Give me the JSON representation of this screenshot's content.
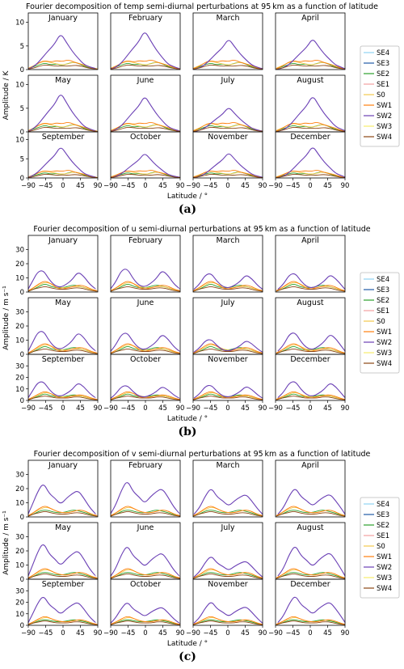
{
  "legend_labels": [
    "SE4",
    "SE3",
    "SE2",
    "SE1",
    "S0",
    "SW1",
    "SW2",
    "SW3",
    "SW4"
  ],
  "colors": {
    "SE4": "#8fd3f2",
    "SE3": "#1f5aa6",
    "SE2": "#2ca02c",
    "SE1": "#f4a0a0",
    "S0": "#f2c94c",
    "SW1": "#ff7f0e",
    "SW2": "#6a3fb5",
    "SW3": "#f7ec6a",
    "SW4": "#8b4513"
  },
  "months": [
    "January",
    "February",
    "March",
    "April",
    "May",
    "June",
    "July",
    "August",
    "September",
    "October",
    "November",
    "December"
  ],
  "x_tick_labels": [
    "−90",
    "−45",
    "0",
    "45",
    "90"
  ],
  "x_label": "Latitude / °",
  "chart_data": [
    {
      "type": "line",
      "title": "Fourier decomposition of temp semi-diurnal perturbations at 95 km as a function of latitude",
      "caption": "(a)",
      "ylabel": "Amplitude / K",
      "ylim": [
        0,
        12
      ],
      "y_ticks": [
        0,
        5,
        10
      ],
      "x": [
        -90,
        -75,
        -60,
        -45,
        -30,
        -15,
        0,
        15,
        30,
        45,
        60,
        75,
        90
      ],
      "xlim": [
        -90,
        90
      ],
      "series": [
        {
          "name": "SE2",
          "values": [
            0.2,
            0.6,
            1.0,
            1.4,
            1.0,
            1.2,
            0.9,
            1.3,
            1.6,
            1.2,
            0.6,
            0.3,
            0.1
          ]
        },
        {
          "name": "S0",
          "values": [
            0.3,
            0.8,
            1.4,
            1.8,
            1.5,
            1.2,
            1.0,
            1.2,
            1.6,
            1.3,
            0.8,
            0.4,
            0.2
          ]
        },
        {
          "name": "SW1",
          "values": [
            0.2,
            0.7,
            1.5,
            1.9,
            1.6,
            1.9,
            1.7,
            2.1,
            1.6,
            1.2,
            0.9,
            0.4,
            0.1
          ]
        },
        {
          "name": "SW2",
          "values": [
            0.1,
            0.4,
            1.2,
            2.5,
            3.8,
            5.0,
            7.0,
            5.2,
            3.5,
            2.2,
            1.0,
            0.5,
            0.2
          ]
        },
        {
          "name": "SW4",
          "values": [
            0.1,
            0.3,
            0.7,
            1.0,
            0.9,
            0.7,
            0.8,
            0.7,
            0.9,
            0.8,
            0.5,
            0.2,
            0.1
          ]
        }
      ]
    },
    {
      "type": "line",
      "title": "Fourier decomposition of u semi-diurnal perturbations at 95 km as a function of latitude",
      "caption": "(b)",
      "ylabel": "Amplitude / m s⁻¹",
      "ylim": [
        0,
        40
      ],
      "y_ticks": [
        0,
        10,
        20,
        30
      ],
      "x": [
        -90,
        -75,
        -60,
        -45,
        -30,
        -15,
        0,
        15,
        30,
        45,
        60,
        75,
        90
      ],
      "xlim": [
        -90,
        90
      ],
      "series": [
        {
          "name": "SE2",
          "values": [
            0.5,
            2,
            4,
            6,
            4,
            3,
            3,
            4,
            5,
            4,
            3,
            1.5,
            0.5
          ]
        },
        {
          "name": "S0",
          "values": [
            0.5,
            3,
            5,
            7,
            6,
            4,
            3,
            3,
            4,
            4,
            3,
            1.5,
            0.5
          ]
        },
        {
          "name": "SW1",
          "values": [
            1,
            3,
            6,
            8,
            6,
            3,
            2,
            3,
            4,
            5,
            4,
            2,
            1
          ]
        },
        {
          "name": "SW2",
          "values": [
            2,
            6,
            13,
            14,
            8,
            4,
            3,
            5,
            8,
            13,
            10,
            5,
            2
          ]
        },
        {
          "name": "SW4",
          "values": [
            0.5,
            2,
            3,
            4,
            3,
            2,
            2,
            2,
            3,
            3,
            2,
            1,
            0.5
          ]
        }
      ]
    },
    {
      "type": "line",
      "title": "Fourier decomposition of v semi-diurnal perturbations at 95 km as a function of latitude",
      "caption": "(c)",
      "ylabel": "Amplitude / m s⁻¹",
      "ylim": [
        0,
        40
      ],
      "y_ticks": [
        0,
        10,
        20,
        30
      ],
      "x": [
        -90,
        -75,
        -60,
        -45,
        -30,
        -15,
        0,
        15,
        30,
        45,
        60,
        75,
        90
      ],
      "xlim": [
        -90,
        90
      ],
      "series": [
        {
          "name": "SE2",
          "values": [
            0.5,
            2,
            4,
            5,
            4,
            3,
            3,
            4,
            5,
            4,
            3,
            1.5,
            0.5
          ]
        },
        {
          "name": "S0",
          "values": [
            0.5,
            3,
            5,
            7,
            6,
            4,
            3,
            3,
            4,
            5,
            4,
            2,
            0.5
          ]
        },
        {
          "name": "SW1",
          "values": [
            1,
            3,
            6,
            8,
            6,
            4,
            3,
            3,
            4,
            5,
            4,
            2,
            1
          ]
        },
        {
          "name": "SW2",
          "values": [
            2,
            7,
            16,
            22,
            15,
            12,
            8,
            12,
            15,
            17,
            12,
            6,
            2
          ]
        },
        {
          "name": "SW4",
          "values": [
            0.5,
            2,
            3,
            4,
            3,
            2,
            2,
            2,
            3,
            3,
            2,
            1,
            0.5
          ]
        }
      ]
    }
  ]
}
